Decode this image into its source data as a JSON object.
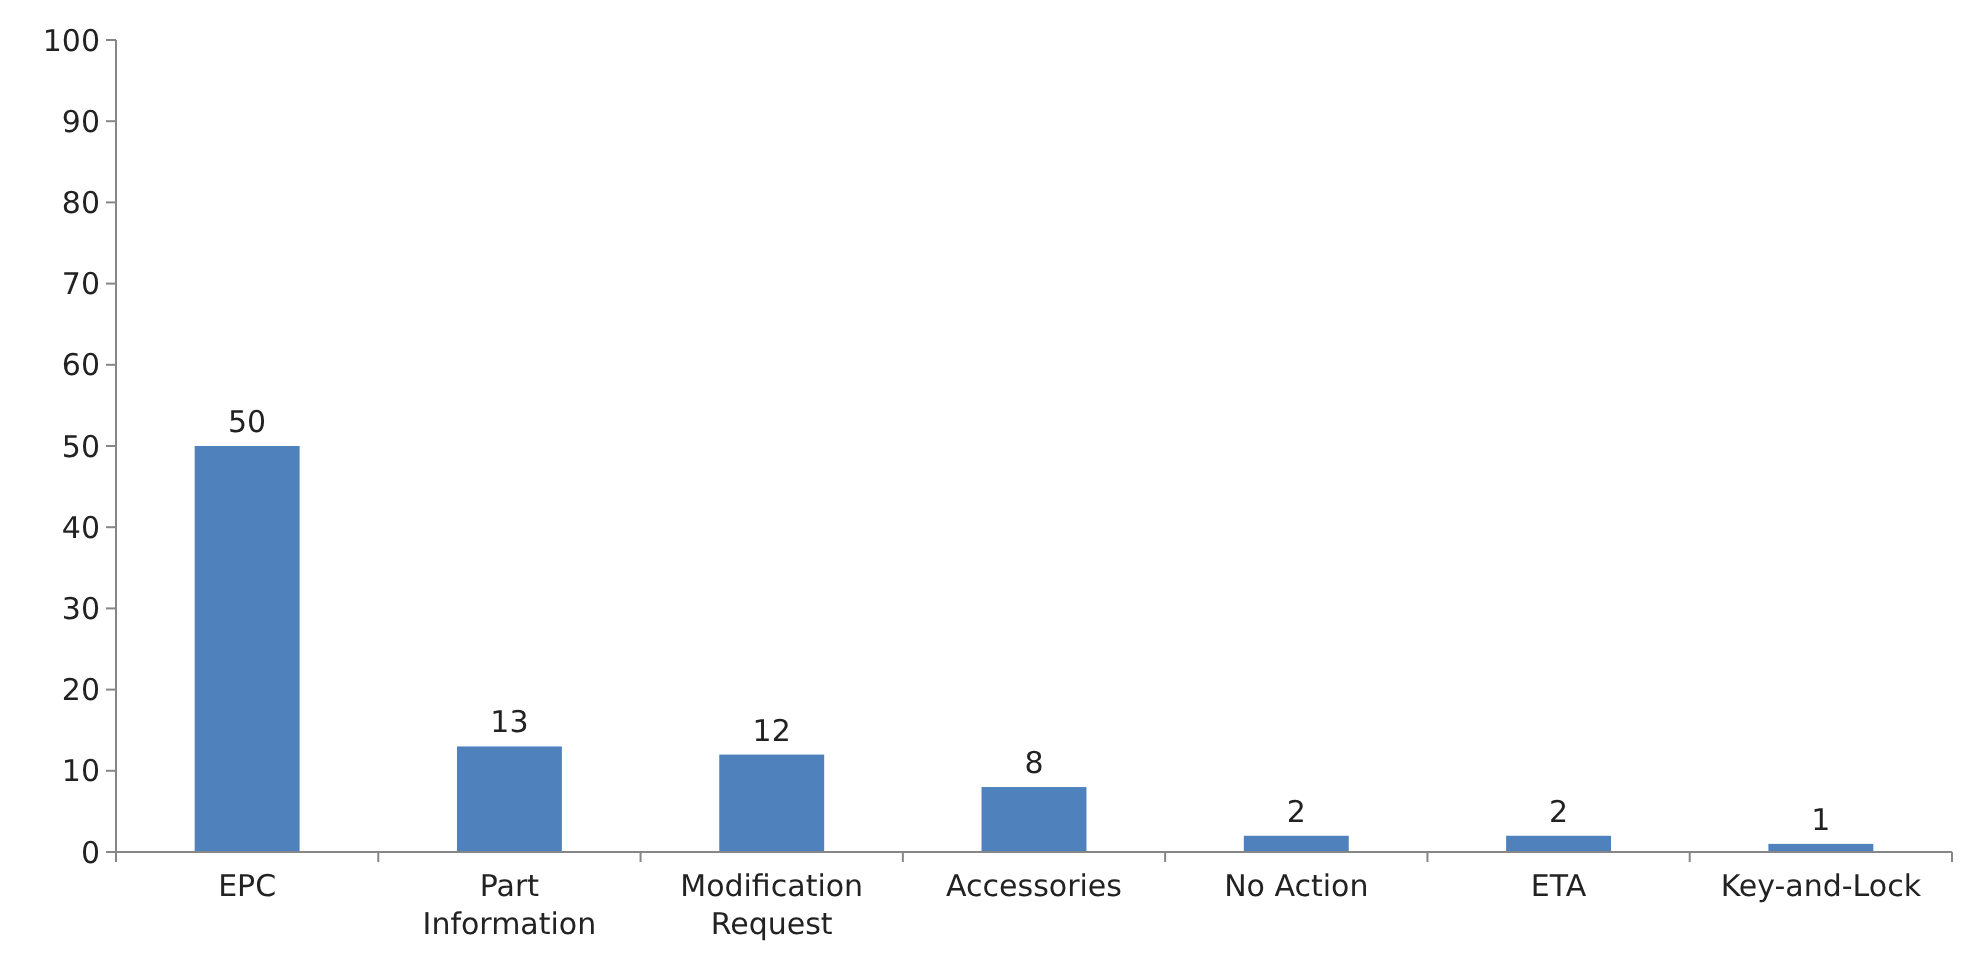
{
  "chart_data": {
    "type": "bar",
    "categories": [
      "EPC",
      "Part Information",
      "Modification Request",
      "Accessories",
      "No Action",
      "ETA",
      "Key-and-Lock"
    ],
    "values": [
      50,
      13,
      12,
      8,
      2,
      2,
      1
    ],
    "color": "#4f81bd",
    "ylim": [
      0,
      100
    ],
    "yticks": [
      0,
      10,
      20,
      30,
      40,
      50,
      60,
      70,
      80,
      90,
      100
    ],
    "grid": false,
    "data_labels": true
  }
}
